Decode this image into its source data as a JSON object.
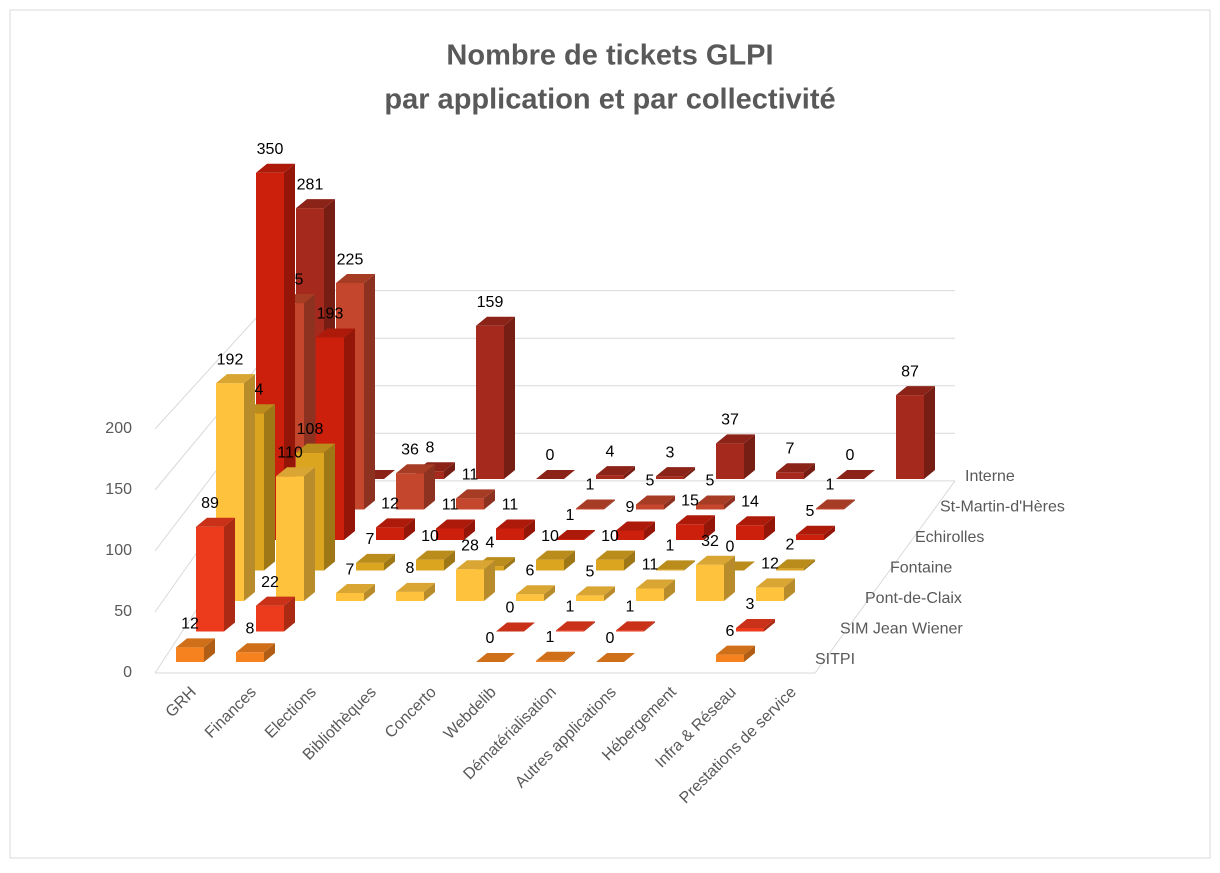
{
  "chart_data": {
    "type": "bar3d",
    "title": [
      "Nombre de tickets GLPI",
      "par application et par collectivité"
    ],
    "categories": [
      "GRH",
      "Finances",
      "Elections",
      "Bibliothèques",
      "Concerto",
      "Webdelib",
      "Dématérialisation",
      "Autres applications",
      "Hébergement",
      "Infra & Réseau",
      "Prestations de service"
    ],
    "series": [
      {
        "name": "SITPI",
        "color": "#f5821f",
        "values": [
          12,
          8,
          null,
          null,
          null,
          0,
          1,
          0,
          null,
          6,
          null
        ]
      },
      {
        "name": "SIM Jean Wiener",
        "color": "#ec3a1c",
        "values": [
          89,
          22,
          null,
          null,
          null,
          0,
          1,
          1,
          null,
          3,
          null
        ]
      },
      {
        "name": "Pont-de-Claix",
        "color": "#ffc23c",
        "values": [
          192,
          110,
          7,
          8,
          28,
          6,
          5,
          11,
          32,
          12,
          null
        ]
      },
      {
        "name": "Fontaine",
        "color": "#dba520",
        "values": [
          144,
          108,
          7,
          10,
          4,
          10,
          10,
          1,
          0,
          2,
          null
        ]
      },
      {
        "name": "Echirolles",
        "color": "#cc1f0c",
        "values": [
          350,
          193,
          12,
          11,
          11,
          1,
          9,
          15,
          14,
          5,
          null
        ]
      },
      {
        "name": "St-Martin-d'Hères",
        "color": "#c4462c",
        "values": [
          205,
          225,
          36,
          11,
          null,
          1,
          5,
          5,
          null,
          1,
          null
        ]
      },
      {
        "name": "Interne",
        "color": "#a5291c",
        "values": [
          281,
          0,
          8,
          159,
          0,
          4,
          3,
          37,
          7,
          0,
          87
        ]
      }
    ],
    "ylim": [
      0,
      250
    ],
    "yticks": [
      0,
      50,
      100,
      150,
      200
    ],
    "grid": true
  }
}
